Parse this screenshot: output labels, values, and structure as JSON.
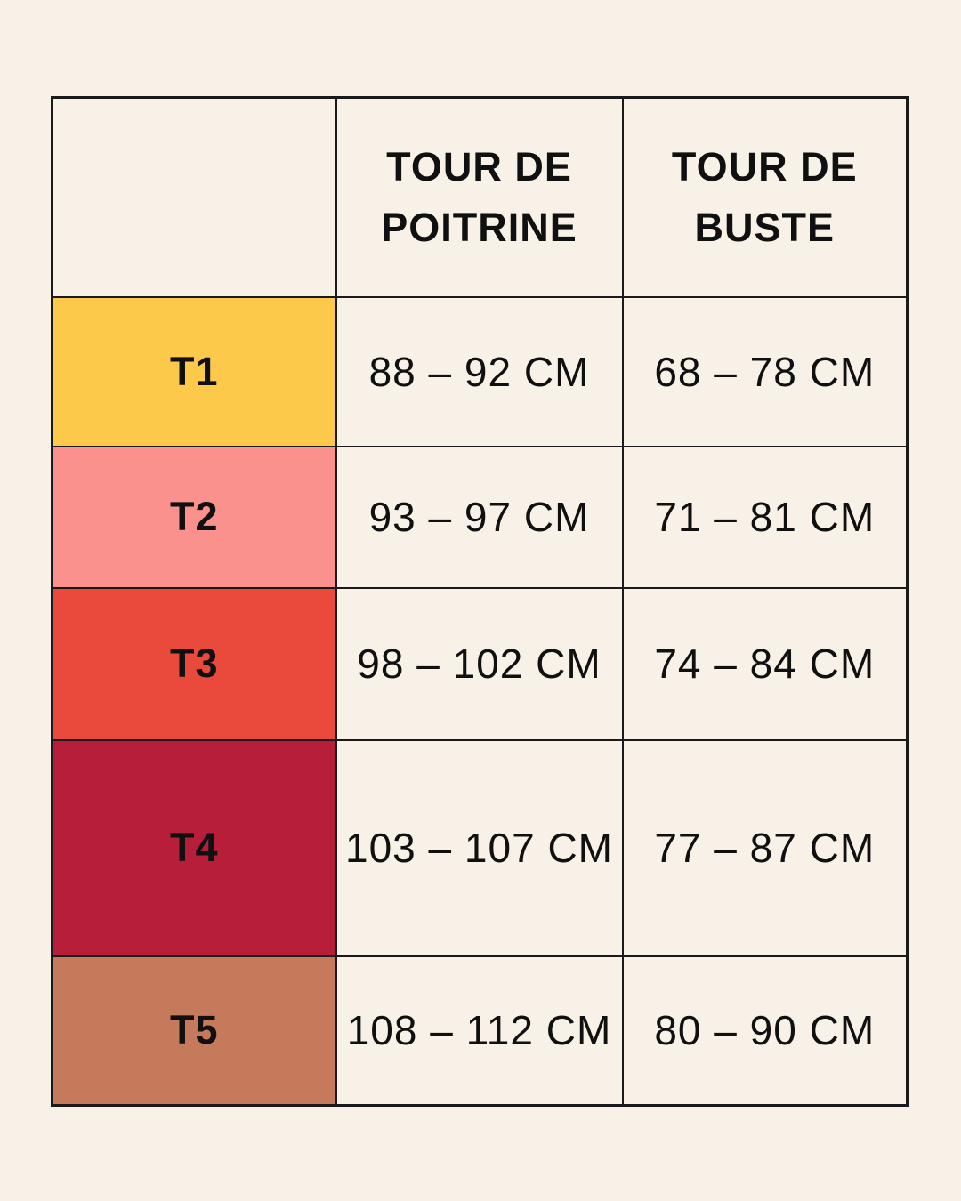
{
  "page": {
    "background": "#F7F1E8",
    "border_color": "#1A1A1A",
    "text_color": "#101010"
  },
  "chart_data": {
    "type": "table",
    "title": "",
    "columns": [
      "",
      "TOUR DE POITRINE",
      "TOUR DE BUSTE"
    ],
    "header": {
      "size": "",
      "poitrine": "TOUR DE POITRINE",
      "buste": "TOUR DE BUSTE"
    },
    "rows": [
      {
        "label": "T1",
        "color": "#FDC94B",
        "poitrine": "88 – 92 CM",
        "buste": "68 – 78 CM"
      },
      {
        "label": "T2",
        "color": "#FA918C",
        "poitrine": "93 – 97 CM",
        "buste": "71 – 81 CM"
      },
      {
        "label": "T3",
        "color": "#E94A3C",
        "poitrine": "98 – 102 CM",
        "buste": "74 – 84 CM"
      },
      {
        "label": "T4",
        "color": "#B71E39",
        "poitrine": "103 – 107 CM",
        "buste": "77 – 87 CM"
      },
      {
        "label": "T5",
        "color": "#C57B5B",
        "poitrine": "108 – 112 CM",
        "buste": "80 – 90 CM"
      }
    ]
  }
}
